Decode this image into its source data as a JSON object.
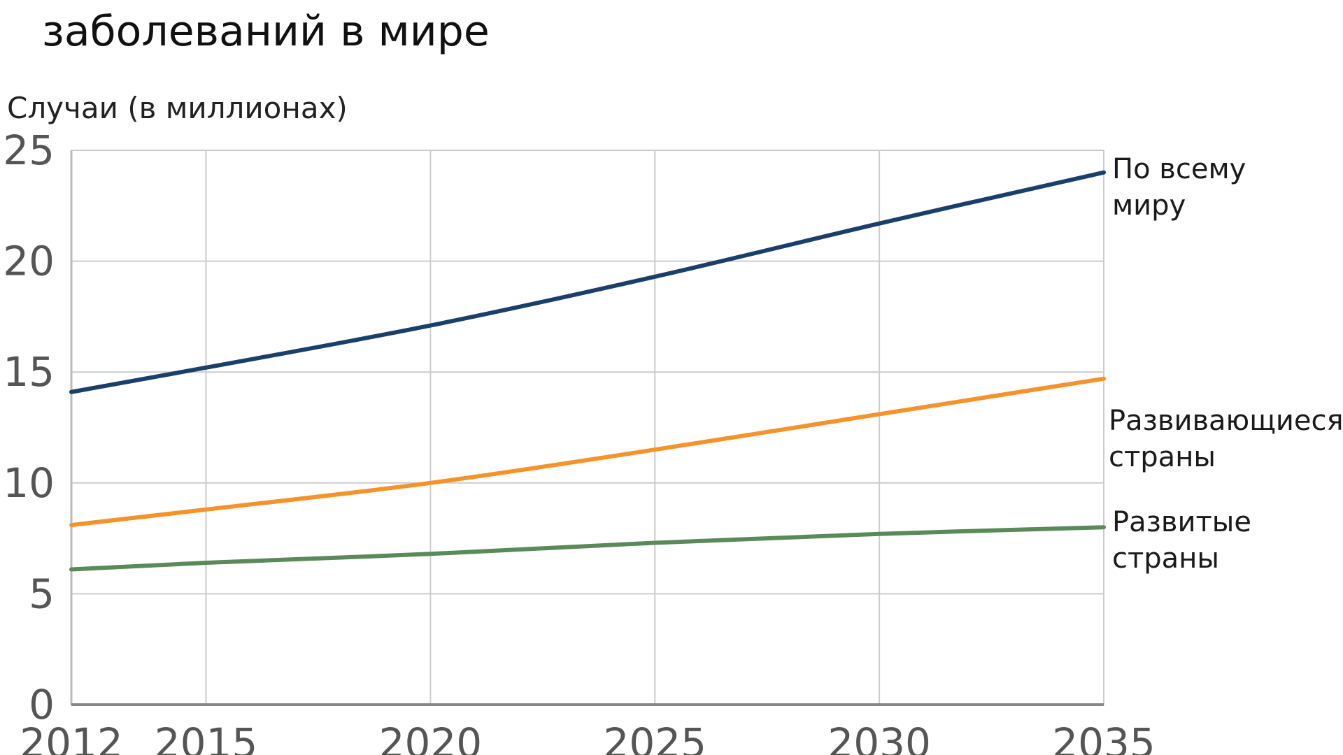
{
  "chart_data": {
    "type": "line",
    "title": "заболеваний в мире",
    "ylabel": "Случаи (в миллионах)",
    "xlabel": "",
    "xlim": [
      2012,
      2035
    ],
    "ylim": [
      0,
      25
    ],
    "x_ticks": [
      2012,
      2015,
      2020,
      2025,
      2030,
      2035
    ],
    "y_ticks": [
      0,
      5,
      10,
      15,
      20,
      25
    ],
    "grid": true,
    "series": [
      {
        "name": "По всему миру",
        "label_lines": [
          "По всему",
          "миру"
        ],
        "color": "#1b3f6b",
        "x": [
          2012,
          2015,
          2020,
          2025,
          2030,
          2035
        ],
        "values": [
          14.1,
          15.2,
          17.1,
          19.3,
          21.7,
          24.0
        ]
      },
      {
        "name": "Развивающиеся страны",
        "label_lines": [
          "Развивающиеся",
          "страны"
        ],
        "color": "#f5922a",
        "x": [
          2012,
          2015,
          2020,
          2025,
          2030,
          2035
        ],
        "values": [
          8.1,
          8.8,
          10.0,
          11.5,
          13.1,
          14.7
        ]
      },
      {
        "name": "Развитые страны",
        "label_lines": [
          "Развитые",
          "страны"
        ],
        "color": "#5a8a5a",
        "x": [
          2012,
          2015,
          2020,
          2025,
          2030,
          2035
        ],
        "values": [
          6.1,
          6.4,
          6.8,
          7.3,
          7.7,
          8.0
        ]
      }
    ]
  }
}
